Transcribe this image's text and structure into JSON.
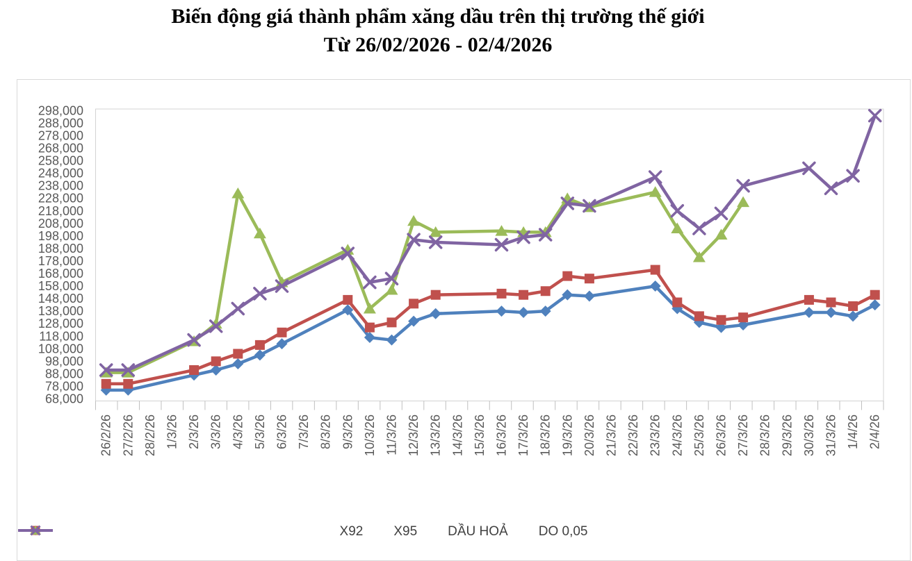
{
  "title": {
    "line1": "Biến động giá thành phẩm xăng dầu trên thị trường thế giới",
    "line2": "Từ 26/02/2026 - 02/4/2026"
  },
  "chart_data": {
    "type": "line",
    "title": "Biến động giá thành phẩm xăng dầu trên thị trường thế giới",
    "subtitle": "Từ 26/02/2026 - 02/4/2026",
    "xlabel": "",
    "ylabel": "",
    "grid": false,
    "legend_position": "bottom",
    "yticks": {
      "min": 68000,
      "max": 298000,
      "step": 10000,
      "format": "#,##0"
    },
    "categories": [
      "26/2/26",
      "27/2/26",
      "28/2/26",
      "1/3/26",
      "2/3/26",
      "3/3/26",
      "4/3/26",
      "5/3/26",
      "6/3/26",
      "7/3/26",
      "8/3/26",
      "9/3/26",
      "10/3/26",
      "11/3/26",
      "12/3/26",
      "13/3/26",
      "14/3/26",
      "15/3/26",
      "16/3/26",
      "17/3/26",
      "18/3/26",
      "19/3/26",
      "20/3/26",
      "21/3/26",
      "22/3/26",
      "23/3/26",
      "24/3/26",
      "25/3/26",
      "26/3/26",
      "27/3/26",
      "28/3/26",
      "29/3/26",
      "30/3/26",
      "31/3/26",
      "1/4/26",
      "2/4/26"
    ],
    "series": [
      {
        "name": "X92",
        "color": "#4F81BD",
        "marker": "diamond",
        "values": [
          75000,
          75000,
          null,
          null,
          87000,
          91000,
          96000,
          103000,
          112000,
          null,
          null,
          139000,
          117000,
          115000,
          130000,
          136000,
          null,
          null,
          138000,
          137000,
          138000,
          151000,
          150000,
          null,
          null,
          158000,
          140000,
          129000,
          125000,
          127000,
          null,
          null,
          137000,
          137000,
          134000,
          143000
        ]
      },
      {
        "name": "X95",
        "color": "#C0504D",
        "marker": "square",
        "values": [
          80000,
          80000,
          null,
          null,
          91000,
          98000,
          104000,
          111000,
          121000,
          null,
          null,
          147000,
          125000,
          129000,
          144000,
          151000,
          null,
          null,
          152000,
          151000,
          154000,
          166000,
          164000,
          null,
          null,
          171000,
          145000,
          134000,
          131000,
          133000,
          null,
          null,
          147000,
          145000,
          142000,
          151000
        ]
      },
      {
        "name": "DẦU HOẢ",
        "color": "#9BBB59",
        "marker": "triangle",
        "values": [
          89000,
          89000,
          null,
          null,
          114000,
          128000,
          232000,
          200000,
          161000,
          null,
          null,
          187000,
          140000,
          155000,
          210000,
          201000,
          null,
          null,
          202000,
          201000,
          201000,
          228000,
          221000,
          null,
          null,
          233000,
          204000,
          181000,
          199000,
          225000,
          null,
          null,
          null,
          null,
          null,
          null
        ]
      },
      {
        "name": "DO 0,05",
        "color": "#8064A2",
        "marker": "x",
        "values": [
          91000,
          91000,
          null,
          null,
          115000,
          126000,
          140000,
          152000,
          158000,
          null,
          null,
          184000,
          161000,
          164000,
          195000,
          193000,
          null,
          null,
          191000,
          197000,
          199000,
          224000,
          222000,
          null,
          null,
          245000,
          218000,
          204000,
          216000,
          238000,
          null,
          null,
          252000,
          236000,
          246000,
          294000
        ]
      }
    ]
  }
}
